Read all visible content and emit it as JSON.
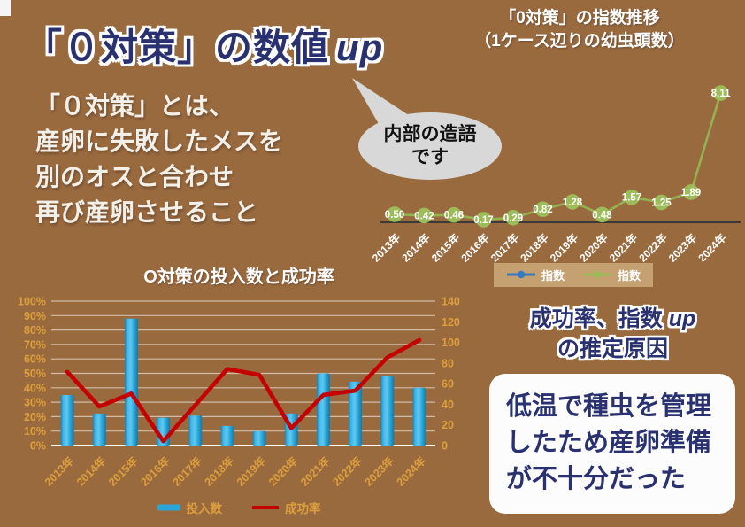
{
  "slide": {
    "title": {
      "main": "「０対策」の数値",
      "suffix": "up"
    },
    "description_lines": [
      "「０対策」とは、",
      "産卵に失敗したメスを",
      "別のオスと合わせ",
      "再び産卵させること"
    ],
    "speech_bubble": {
      "line1": "内部の造語",
      "line2": "です"
    },
    "cause_heading": {
      "line1_pre": "成功率、指数",
      "line1_italic": "up",
      "line2": "の推定原因"
    },
    "cause_box_lines": [
      "低温で種虫を管理",
      "したため産卵準備",
      "が不十分だった"
    ]
  },
  "colors": {
    "background": "#9a6a3f",
    "navy_text": "#293170",
    "white_text": "#ffffff",
    "gold_axis": "#dc9f3d",
    "green_series": "#9cbb59",
    "green_line": "#94b24f",
    "blue_legend": "#3579c0",
    "bar_blue": "#2ba4d8",
    "red_line": "#c40000",
    "axis_dark": "#3a3a3a",
    "gridline": "rgba(255,255,255,0.55)",
    "legend_bg": "#c5a071",
    "bubble_gray": "#d8d8d8"
  },
  "chart_data": [
    {
      "type": "line",
      "title": "「0対策」の指数推移",
      "subtitle": "（1ケース辺りの幼虫頭数）",
      "categories": [
        "2013年",
        "2014年",
        "2015年",
        "2016年",
        "2017年",
        "2018年",
        "2019年",
        "2020年",
        "2021年",
        "2022年",
        "2023年",
        "2024年"
      ],
      "series": [
        {
          "name": "指数",
          "color": "#9cbb59",
          "values": [
            0.5,
            0.42,
            0.46,
            0.17,
            0.29,
            0.82,
            1.28,
            0.48,
            1.57,
            1.25,
            1.89,
            8.11
          ]
        }
      ],
      "legend": [
        {
          "label": "指数",
          "color": "#3579c0"
        },
        {
          "label": "指数",
          "color": "#9cbb59"
        }
      ],
      "data_labels": true,
      "ylim": [
        0,
        8.5
      ],
      "grid": false,
      "legend_position": "bottom"
    },
    {
      "type": "bar",
      "title": "O対策の投入数と成功率",
      "categories": [
        "2013年",
        "2014年",
        "2015年",
        "2016年",
        "2017年",
        "2018年",
        "2019年",
        "2020年",
        "2021年",
        "2022年",
        "2023年",
        "2024年"
      ],
      "series": [
        {
          "name": "投入数",
          "type": "bar",
          "axis": "right",
          "color": "#2ba4d8",
          "values": [
            49,
            31,
            123,
            27,
            29,
            19,
            14,
            31,
            70,
            62,
            67,
            56
          ]
        },
        {
          "name": "成功率",
          "type": "line",
          "axis": "left",
          "color": "#c40000",
          "values_percent": [
            51,
            27,
            36,
            3,
            28,
            53,
            49,
            12,
            35,
            38,
            61,
            73
          ]
        }
      ],
      "left_axis": {
        "min": 0,
        "max": 100,
        "step": 10,
        "format": "percent",
        "labels": [
          "0%",
          "10%",
          "20%",
          "30%",
          "40%",
          "50%",
          "60%",
          "70%",
          "80%",
          "90%",
          "100%"
        ]
      },
      "right_axis": {
        "min": 0,
        "max": 140,
        "step": 20,
        "labels": [
          "0",
          "20",
          "40",
          "60",
          "80",
          "100",
          "120",
          "140"
        ]
      },
      "grid": true,
      "legend_position": "bottom"
    }
  ]
}
